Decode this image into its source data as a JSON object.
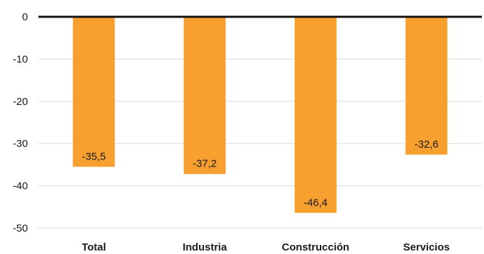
{
  "chart_data": {
    "type": "bar",
    "categories": [
      "Total",
      "Industria",
      "Construcción",
      "Servicios"
    ],
    "values": [
      -35.5,
      -37.2,
      -46.4,
      -32.6
    ],
    "value_labels": [
      "-35,5",
      "-37,2",
      "-46,4",
      "-32,6"
    ],
    "yticks": [
      0,
      -10,
      -20,
      -30,
      -40,
      -50
    ],
    "ytick_labels": [
      "0",
      "-10",
      "-20",
      "-30",
      "-40",
      "-50"
    ],
    "ylim": [
      -50,
      0
    ],
    "title": "",
    "xlabel": "",
    "ylabel": "",
    "grid": true,
    "bar_color": "#f7a030",
    "legend": "none"
  }
}
